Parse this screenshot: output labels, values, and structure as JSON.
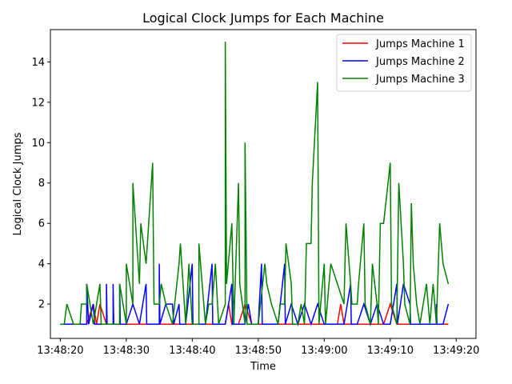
{
  "chart_data": {
    "type": "line",
    "title": "Logical Clock Jumps for Each Machine",
    "xlabel": "Time",
    "ylabel": "Logical Clock Jumps",
    "x_unit": "seconds",
    "xlim": [
      -1.5,
      63
    ],
    "ylim": [
      0.3,
      15.6
    ],
    "x_ticks": [
      {
        "value": 0,
        "label": "13:48:20"
      },
      {
        "value": 10,
        "label": "13:48:30"
      },
      {
        "value": 20,
        "label": "13:48:40"
      },
      {
        "value": 30,
        "label": "13:48:50"
      },
      {
        "value": 40,
        "label": "13:49:00"
      },
      {
        "value": 50,
        "label": "13:49:10"
      },
      {
        "value": 60,
        "label": "13:49:20"
      }
    ],
    "y_ticks": [
      2,
      4,
      6,
      8,
      10,
      12,
      14
    ],
    "legend_position": "top-right",
    "series": [
      {
        "name": "Jumps Machine 1",
        "color": "#ff0000",
        "points": [
          [
            0,
            1
          ],
          [
            1,
            1
          ],
          [
            2,
            1
          ],
          [
            3,
            1
          ],
          [
            4,
            1
          ],
          [
            5,
            2
          ],
          [
            5.5,
            1
          ],
          [
            6,
            2
          ],
          [
            7,
            1
          ],
          [
            8,
            1
          ],
          [
            9,
            1
          ],
          [
            10,
            1
          ],
          [
            11,
            1
          ],
          [
            12,
            1
          ],
          [
            13,
            1
          ],
          [
            14,
            1
          ],
          [
            15,
            1
          ],
          [
            16,
            1
          ],
          [
            17,
            1
          ],
          [
            18,
            1
          ],
          [
            19,
            1
          ],
          [
            20,
            1
          ],
          [
            21,
            1
          ],
          [
            22,
            1
          ],
          [
            23,
            1
          ],
          [
            24,
            1
          ],
          [
            25,
            1
          ],
          [
            25.5,
            2
          ],
          [
            26,
            1
          ],
          [
            27,
            1
          ],
          [
            28,
            2
          ],
          [
            29,
            1
          ],
          [
            30,
            1
          ],
          [
            31,
            1
          ],
          [
            32,
            1
          ],
          [
            33,
            1
          ],
          [
            34,
            1
          ],
          [
            35,
            1
          ],
          [
            36,
            1
          ],
          [
            37,
            1
          ],
          [
            38,
            1
          ],
          [
            39,
            1
          ],
          [
            40,
            1
          ],
          [
            41,
            1
          ],
          [
            42,
            1
          ],
          [
            42.5,
            2
          ],
          [
            43,
            1
          ],
          [
            44,
            1
          ],
          [
            45,
            1
          ],
          [
            46,
            1
          ],
          [
            47,
            1
          ],
          [
            48,
            1
          ],
          [
            49,
            1
          ],
          [
            50,
            2
          ],
          [
            51,
            1
          ],
          [
            52,
            1
          ],
          [
            53,
            1
          ],
          [
            54,
            1
          ],
          [
            55,
            1
          ],
          [
            56,
            1
          ],
          [
            57,
            1
          ],
          [
            58,
            1
          ],
          [
            58.8,
            1
          ]
        ]
      },
      {
        "name": "Jumps Machine 2",
        "color": "#0000ff",
        "points": [
          [
            0,
            1
          ],
          [
            1,
            1
          ],
          [
            2,
            1
          ],
          [
            3,
            1
          ],
          [
            4,
            1
          ],
          [
            4,
            3
          ],
          [
            4.3,
            1
          ],
          [
            5,
            2
          ],
          [
            5.2,
            1
          ],
          [
            6,
            1
          ],
          [
            7,
            1
          ],
          [
            7,
            3
          ],
          [
            7.1,
            1
          ],
          [
            8,
            1
          ],
          [
            8,
            3
          ],
          [
            8.1,
            1
          ],
          [
            9,
            1
          ],
          [
            9,
            3
          ],
          [
            9.1,
            1
          ],
          [
            10,
            1
          ],
          [
            11,
            2
          ],
          [
            12,
            1
          ],
          [
            13,
            3
          ],
          [
            13.1,
            1
          ],
          [
            15,
            1
          ],
          [
            15,
            4
          ],
          [
            15.1,
            1
          ],
          [
            16,
            2
          ],
          [
            17,
            2
          ],
          [
            17.2,
            1
          ],
          [
            18,
            2
          ],
          [
            18.1,
            1
          ],
          [
            19,
            1
          ],
          [
            20,
            4
          ],
          [
            20.1,
            1
          ],
          [
            21,
            1
          ],
          [
            22,
            1
          ],
          [
            23,
            4
          ],
          [
            23.1,
            1
          ],
          [
            24,
            1
          ],
          [
            25,
            1
          ],
          [
            26,
            3
          ],
          [
            26.1,
            1
          ],
          [
            27,
            1
          ],
          [
            28,
            1
          ],
          [
            28.5,
            2
          ],
          [
            29,
            1
          ],
          [
            30,
            1
          ],
          [
            30.5,
            4
          ],
          [
            30.6,
            1
          ],
          [
            31,
            1
          ],
          [
            32,
            1
          ],
          [
            33,
            1
          ],
          [
            34,
            4
          ],
          [
            34.1,
            1
          ],
          [
            35,
            2
          ],
          [
            36,
            1
          ],
          [
            37,
            2
          ],
          [
            38,
            1
          ],
          [
            39,
            2
          ],
          [
            40,
            1
          ],
          [
            41,
            1
          ],
          [
            42,
            1
          ],
          [
            43,
            1
          ],
          [
            44,
            3
          ],
          [
            44.1,
            1
          ],
          [
            45,
            1
          ],
          [
            46,
            2
          ],
          [
            47,
            1
          ],
          [
            48,
            2
          ],
          [
            49,
            1
          ],
          [
            50,
            1
          ],
          [
            51,
            3
          ],
          [
            51.1,
            1
          ],
          [
            52,
            3
          ],
          [
            53,
            2
          ],
          [
            53.1,
            1
          ],
          [
            54,
            1
          ],
          [
            55,
            1
          ],
          [
            56,
            1
          ],
          [
            57,
            1
          ],
          [
            57,
            2
          ],
          [
            57.1,
            1
          ],
          [
            58,
            1
          ],
          [
            58.8,
            2
          ]
        ]
      },
      {
        "name": "Jumps Machine 3",
        "color": "#008000",
        "points": [
          [
            0,
            1
          ],
          [
            0.6,
            1
          ],
          [
            1,
            2
          ],
          [
            2,
            1
          ],
          [
            3,
            1
          ],
          [
            3.2,
            2
          ],
          [
            4,
            2
          ],
          [
            4,
            3
          ],
          [
            5,
            1
          ],
          [
            6,
            3
          ],
          [
            6.2,
            1
          ],
          [
            7,
            1
          ],
          [
            8,
            1
          ],
          [
            9,
            1
          ],
          [
            9,
            3
          ],
          [
            10,
            1
          ],
          [
            10,
            4
          ],
          [
            11,
            2
          ],
          [
            11,
            8
          ],
          [
            12,
            3
          ],
          [
            12.2,
            6
          ],
          [
            13,
            4
          ],
          [
            14,
            9
          ],
          [
            14.2,
            2
          ],
          [
            15,
            2
          ],
          [
            15.3,
            3
          ],
          [
            16,
            2
          ],
          [
            17,
            1
          ],
          [
            18,
            4
          ],
          [
            18.2,
            5
          ],
          [
            19,
            1
          ],
          [
            19.5,
            4
          ],
          [
            20,
            1
          ],
          [
            21,
            1
          ],
          [
            21,
            5
          ],
          [
            22,
            1
          ],
          [
            22.5,
            2
          ],
          [
            23,
            2
          ],
          [
            23.5,
            4
          ],
          [
            24,
            1
          ],
          [
            25,
            2
          ],
          [
            25,
            15
          ],
          [
            25.2,
            3
          ],
          [
            26,
            6
          ],
          [
            26.3,
            1
          ],
          [
            27,
            8
          ],
          [
            27.2,
            3
          ],
          [
            28,
            1
          ],
          [
            28,
            10
          ],
          [
            28.3,
            1
          ],
          [
            29,
            1
          ],
          [
            30,
            1
          ],
          [
            31,
            4
          ],
          [
            31.3,
            3
          ],
          [
            32,
            2
          ],
          [
            33,
            1
          ],
          [
            33.3,
            2
          ],
          [
            34,
            2
          ],
          [
            34.2,
            5
          ],
          [
            35,
            3
          ],
          [
            35.2,
            1
          ],
          [
            36,
            1
          ],
          [
            36.5,
            2
          ],
          [
            37,
            1
          ],
          [
            37.3,
            5
          ],
          [
            38,
            5
          ],
          [
            38.2,
            8
          ],
          [
            39,
            13
          ],
          [
            39.2,
            1
          ],
          [
            40,
            4
          ],
          [
            40.2,
            1
          ],
          [
            41,
            4
          ],
          [
            42,
            3
          ],
          [
            43,
            2
          ],
          [
            43.3,
            6
          ],
          [
            44,
            3
          ],
          [
            44.2,
            2
          ],
          [
            45,
            2
          ],
          [
            45.2,
            3
          ],
          [
            46,
            6
          ],
          [
            46.2,
            2
          ],
          [
            47,
            1
          ],
          [
            47.3,
            4
          ],
          [
            48,
            2
          ],
          [
            48.2,
            1
          ],
          [
            48.5,
            6
          ],
          [
            49,
            6
          ],
          [
            50,
            9
          ],
          [
            50.2,
            2
          ],
          [
            51,
            1
          ],
          [
            51.3,
            8
          ],
          [
            52,
            4
          ],
          [
            52.2,
            2
          ],
          [
            53,
            1
          ],
          [
            53.2,
            7
          ],
          [
            53.5,
            4
          ],
          [
            54,
            2
          ],
          [
            54.5,
            1
          ],
          [
            55,
            2
          ],
          [
            55.5,
            3
          ],
          [
            56,
            1
          ],
          [
            56.5,
            3
          ],
          [
            57,
            1
          ],
          [
            57.5,
            6
          ],
          [
            58,
            4
          ],
          [
            58.8,
            3
          ]
        ]
      }
    ]
  }
}
